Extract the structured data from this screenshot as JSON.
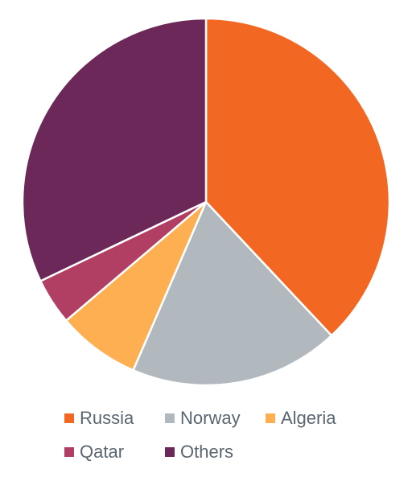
{
  "chart_data": {
    "type": "pie",
    "categories": [
      "Russia",
      "Norway",
      "Algeria",
      "Qatar",
      "Others"
    ],
    "values": [
      38,
      18.5,
      7.3,
      4.1,
      32.1
    ],
    "colors": [
      "#f26722",
      "#b1b9be",
      "#fdaf52",
      "#b03f63",
      "#6b2858"
    ],
    "legend": "bottom"
  }
}
